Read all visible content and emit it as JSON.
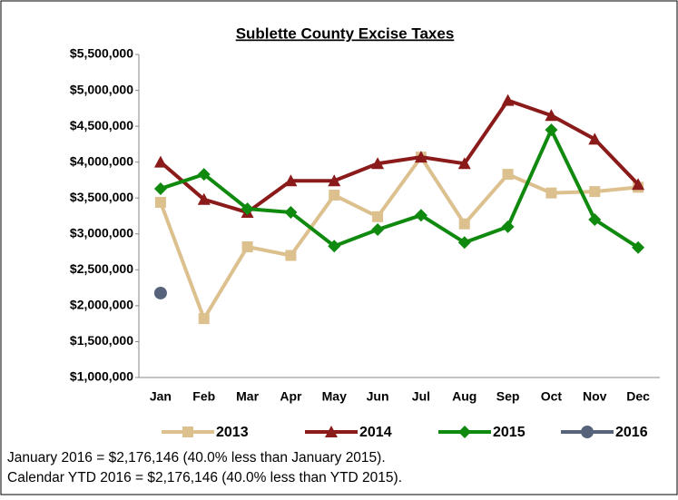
{
  "chart_data": {
    "type": "line",
    "title": "Sublette County Excise Taxes",
    "categories": [
      "Jan",
      "Feb",
      "Mar",
      "Apr",
      "May",
      "Jun",
      "Jul",
      "Aug",
      "Sep",
      "Oct",
      "Nov",
      "Dec"
    ],
    "series": [
      {
        "name": "2013",
        "color": "#dcc08e",
        "marker": "square",
        "values": [
          3440000,
          1820000,
          2820000,
          2700000,
          3540000,
          3240000,
          4070000,
          3140000,
          3830000,
          3570000,
          3590000,
          3650000
        ]
      },
      {
        "name": "2014",
        "color": "#8b1a1a",
        "marker": "triangle",
        "values": [
          4000000,
          3480000,
          3300000,
          3740000,
          3740000,
          3980000,
          4070000,
          3980000,
          4860000,
          4650000,
          4320000,
          3690000
        ]
      },
      {
        "name": "2015",
        "color": "#0f8a0f",
        "marker": "diamond",
        "values": [
          3630000,
          3830000,
          3350000,
          3300000,
          2830000,
          3060000,
          3260000,
          2880000,
          3100000,
          4450000,
          3200000,
          2810000
        ]
      },
      {
        "name": "2016",
        "color": "#56637a",
        "marker": "circle",
        "values": [
          2176146,
          null,
          null,
          null,
          null,
          null,
          null,
          null,
          null,
          null,
          null,
          null
        ]
      }
    ],
    "ylim": [
      1000000,
      5500000
    ],
    "yticks": [
      {
        "value": 1000000,
        "label": "$1,000,000"
      },
      {
        "value": 1500000,
        "label": "$1,500,000"
      },
      {
        "value": 2000000,
        "label": "$2,000,000"
      },
      {
        "value": 2500000,
        "label": "$2,500,000"
      },
      {
        "value": 3000000,
        "label": "$3,000,000"
      },
      {
        "value": 3500000,
        "label": "$3,500,000"
      },
      {
        "value": 4000000,
        "label": "$4,000,000"
      },
      {
        "value": 4500000,
        "label": "$4,500,000"
      },
      {
        "value": 5000000,
        "label": "$5,000,000"
      },
      {
        "value": 5500000,
        "label": "$5,500,000"
      }
    ],
    "grid": false,
    "legend": "bottom",
    "annotations": [
      "January 2016 = $2,176,146 (40.0% less than January 2015).",
      "Calendar YTD 2016 = $2,176,146 (40.0% less than YTD 2015)."
    ]
  }
}
